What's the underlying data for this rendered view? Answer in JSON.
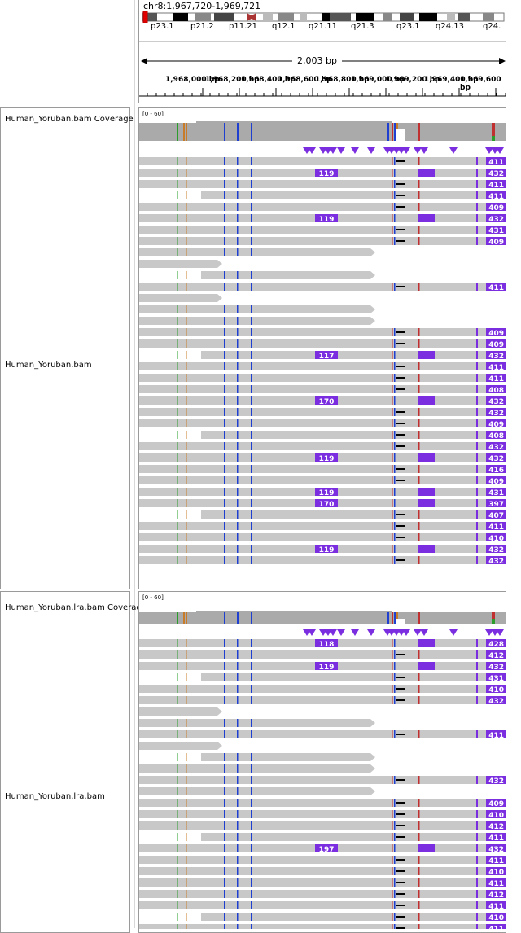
{
  "header": {
    "locus": "chr8:1,967,720-1,969,721",
    "cytobands": [
      "p23.1",
      "p21.2",
      "p11.21",
      "q12.1",
      "q21.11",
      "q21.3",
      "q23.1",
      "q24.13",
      "q24."
    ],
    "span_label": "2,003 bp",
    "ruler_ticks": [
      "1,968,000 bp",
      "1,968,200 bp",
      "1,968,400 bp",
      "1,968,600 bp",
      "1,968,800 bp",
      "1,969,000 bp",
      "1,969,200 bp",
      "1,969,400 bp",
      "1,969,600 bp"
    ]
  },
  "tracks": {
    "coverage1": {
      "name": "Human_Yoruban.bam Coverage",
      "range": "[0 - 60]"
    },
    "alignment1": {
      "name": "Human_Yoruban.bam"
    },
    "coverage2": {
      "name": "Human_Yoruban.lra.bam Coverage",
      "range": "[0 - 60]"
    },
    "alignment2": {
      "name": "Human_Yoruban.lra.bam"
    }
  },
  "colors": {
    "read": "#c8c8c8",
    "insertion": "#7a2ee0",
    "coverage": "#aaaaaa"
  },
  "reads1": [
    {
      "label": "411"
    },
    {
      "label": "432",
      "ins": "119"
    },
    {
      "label": "411"
    },
    {
      "label": "411"
    },
    {
      "label": "409"
    },
    {
      "label": "432",
      "ins": "119"
    },
    {
      "label": "431"
    },
    {
      "label": "409"
    },
    {
      "label": ""
    },
    {
      "label": ""
    },
    {
      "label": ""
    },
    {
      "label": "411"
    },
    {
      "label": ""
    },
    {
      "label": ""
    },
    {
      "label": ""
    },
    {
      "label": "409"
    },
    {
      "label": "409"
    },
    {
      "label": "432",
      "ins": "117"
    },
    {
      "label": "411"
    },
    {
      "label": "411"
    },
    {
      "label": "408"
    },
    {
      "label": "432",
      "ins": "170"
    },
    {
      "label": "432"
    },
    {
      "label": "409"
    },
    {
      "label": "408"
    },
    {
      "label": "432"
    },
    {
      "label": "432",
      "ins": "119"
    },
    {
      "label": "416"
    },
    {
      "label": "409"
    },
    {
      "label": "431",
      "ins": "119"
    },
    {
      "label": "397",
      "ins": "170"
    },
    {
      "label": "407"
    },
    {
      "label": "411"
    },
    {
      "label": "410"
    },
    {
      "label": "432",
      "ins": "119"
    },
    {
      "label": "432"
    }
  ],
  "reads2": [
    {
      "label": "428",
      "ins": "118"
    },
    {
      "label": "412"
    },
    {
      "label": "432",
      "ins": "119"
    },
    {
      "label": "431"
    },
    {
      "label": "410"
    },
    {
      "label": "432"
    },
    {
      "label": ""
    },
    {
      "label": ""
    },
    {
      "label": "411"
    },
    {
      "label": ""
    },
    {
      "label": ""
    },
    {
      "label": ""
    },
    {
      "label": "432"
    },
    {
      "label": ""
    },
    {
      "label": "409"
    },
    {
      "label": "410"
    },
    {
      "label": "412"
    },
    {
      "label": "411"
    },
    {
      "label": "432",
      "ins": "197"
    },
    {
      "label": "411"
    },
    {
      "label": "410"
    },
    {
      "label": "411"
    },
    {
      "label": "412"
    },
    {
      "label": "411"
    },
    {
      "label": "410"
    },
    {
      "label": "411"
    }
  ]
}
